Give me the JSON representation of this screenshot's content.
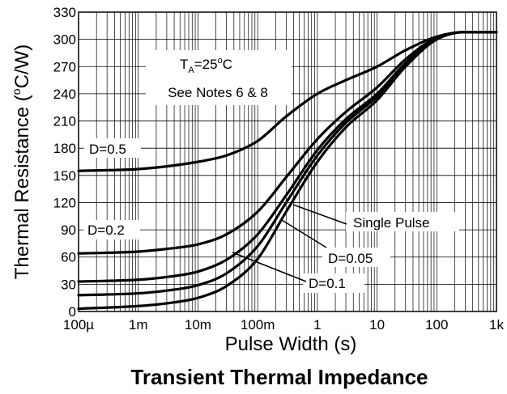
{
  "chart_data": {
    "type": "line",
    "title": "Transient Thermal Impedance",
    "xlabel": "Pulse Width (s)",
    "ylabel_prefix": "Thermal Resistance (",
    "ylabel_unit_sup": "o",
    "ylabel_suffix": "C/W)",
    "xscale": "log",
    "xlim": [
      0.0001,
      1000
    ],
    "ylim": [
      0,
      330
    ],
    "x_tick_values": [
      0.0001,
      0.001,
      0.01,
      0.1,
      1,
      10,
      100,
      1000
    ],
    "x_tick_labels": [
      "100µ",
      "1m",
      "10m",
      "100m",
      "1",
      "10",
      "100",
      "1k"
    ],
    "y_ticks": [
      0,
      30,
      60,
      90,
      120,
      150,
      180,
      210,
      240,
      270,
      300,
      330
    ],
    "grid": true,
    "conditions": {
      "ta_prefix": "T",
      "ta_sub": "A",
      "ta_value": "=25",
      "ta_deg": "o",
      "ta_unit": "C",
      "notes": "See Notes 6 & 8"
    },
    "series": [
      {
        "name": "D=0.5",
        "x": [
          0.0001,
          0.001,
          0.003,
          0.01,
          0.03,
          0.1,
          0.3,
          1,
          3,
          10,
          30,
          100,
          300,
          1000
        ],
        "y": [
          155,
          157,
          160,
          165,
          172,
          188,
          215,
          240,
          255,
          270,
          288,
          303,
          308,
          308
        ]
      },
      {
        "name": "D=0.2",
        "x": [
          0.0001,
          0.001,
          0.003,
          0.01,
          0.03,
          0.1,
          0.3,
          1,
          3,
          10,
          30,
          100,
          300,
          1000
        ],
        "y": [
          64,
          66,
          69,
          74,
          85,
          110,
          148,
          190,
          220,
          247,
          278,
          302,
          308,
          308
        ]
      },
      {
        "name": "D=0.1",
        "x": [
          0.0001,
          0.001,
          0.003,
          0.01,
          0.03,
          0.1,
          0.3,
          1,
          3,
          10,
          30,
          100,
          300,
          1000
        ],
        "y": [
          33,
          35,
          38,
          44,
          57,
          85,
          128,
          178,
          212,
          240,
          274,
          301,
          308,
          308
        ]
      },
      {
        "name": "D=0.05",
        "x": [
          0.0001,
          0.001,
          0.003,
          0.01,
          0.03,
          0.1,
          0.3,
          1,
          3,
          10,
          30,
          100,
          300,
          1000
        ],
        "y": [
          18,
          20,
          23,
          29,
          42,
          72,
          120,
          172,
          208,
          237,
          272,
          300,
          308,
          308
        ]
      },
      {
        "name": "Single Pulse",
        "x": [
          0.0001,
          0.001,
          0.003,
          0.01,
          0.03,
          0.1,
          0.3,
          1,
          3,
          10,
          30,
          100,
          300,
          1000
        ],
        "y": [
          3,
          6,
          9,
          15,
          28,
          58,
          110,
          165,
          203,
          233,
          270,
          300,
          308,
          308
        ]
      }
    ]
  }
}
